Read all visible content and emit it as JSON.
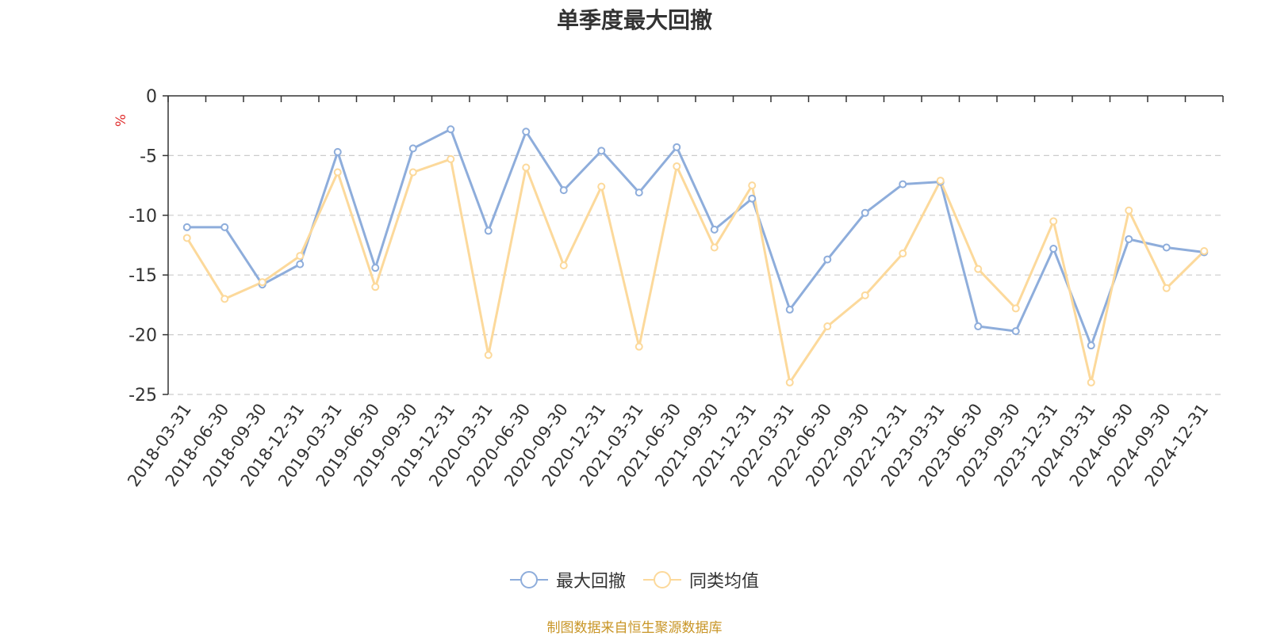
{
  "source_note": "制图数据来自恒生聚源数据库",
  "colors": {
    "series_max_drawdown": "#8eaddb",
    "series_peer_avg": "#fcd99b",
    "unit_label": "#e03030",
    "source_note": "#c89526",
    "grid": "#cccccc",
    "axis": "#333333"
  },
  "chart_data": {
    "type": "line",
    "title": "单季度最大回撤",
    "ylabel": "%",
    "xlabel": "",
    "ylim": [
      -25,
      0
    ],
    "yticks": [
      0,
      -5,
      -10,
      -15,
      -20,
      -25
    ],
    "grid": "horizontal dashed",
    "legend_position": "bottom-center",
    "categories": [
      "2018-03-31",
      "2018-06-30",
      "2018-09-30",
      "2018-12-31",
      "2019-03-31",
      "2019-06-30",
      "2019-09-30",
      "2019-12-31",
      "2020-03-31",
      "2020-06-30",
      "2020-09-30",
      "2020-12-31",
      "2021-03-31",
      "2021-06-30",
      "2021-09-30",
      "2021-12-31",
      "2022-03-31",
      "2022-06-30",
      "2022-09-30",
      "2022-12-31",
      "2023-03-31",
      "2023-06-30",
      "2023-09-30",
      "2023-12-31",
      "2024-03-31",
      "2024-06-30",
      "2024-09-30",
      "2024-12-31"
    ],
    "series": [
      {
        "name": "最大回撤",
        "color": "#8eaddb",
        "values": [
          -11.0,
          -11.0,
          -15.8,
          -14.1,
          -4.7,
          -14.4,
          -4.4,
          -2.8,
          -11.3,
          -3.0,
          -7.9,
          -4.6,
          -8.1,
          -4.3,
          -11.2,
          -8.6,
          -17.9,
          -13.7,
          -9.8,
          -7.4,
          -7.2,
          -19.3,
          -19.7,
          -12.8,
          -20.9,
          -12.0,
          -12.7,
          -13.1
        ]
      },
      {
        "name": "同类均值",
        "color": "#fcd99b",
        "values": [
          -11.9,
          -17.0,
          -15.6,
          -13.4,
          -6.4,
          -16.0,
          -6.4,
          -5.3,
          -21.7,
          -6.0,
          -14.2,
          -7.6,
          -21.0,
          -5.9,
          -12.7,
          -7.5,
          -24.0,
          -19.3,
          -16.7,
          -13.2,
          -7.1,
          -14.5,
          -17.8,
          -10.5,
          -24.0,
          -9.6,
          -16.1,
          -13.0
        ]
      }
    ]
  }
}
